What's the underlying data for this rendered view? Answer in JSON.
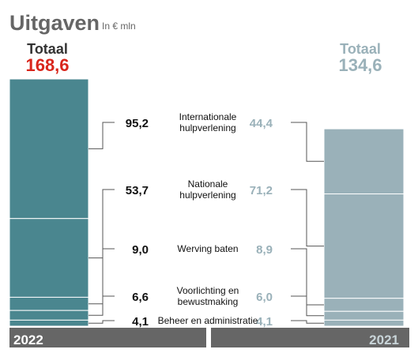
{
  "header": {
    "title": "Uitgaven",
    "unit": "In € mln"
  },
  "chart_data": {
    "type": "stacked-bar",
    "categories": [
      "2022",
      "2021"
    ],
    "segments": [
      {
        "label": "Internationale hulpverlening",
        "label_lines": [
          "Internationale",
          "hulpverlening"
        ],
        "values_text": [
          "95,2",
          "44,4"
        ],
        "values": [
          95.2,
          44.4
        ]
      },
      {
        "label": "Nationale hulpverlening",
        "label_lines": [
          "Nationale",
          "hulpverlening"
        ],
        "values_text": [
          "53,7",
          "71,2"
        ],
        "values": [
          53.7,
          71.2
        ]
      },
      {
        "label": "Werving baten",
        "label_lines": [
          "Werving baten"
        ],
        "values_text": [
          "9,0",
          "8,9"
        ],
        "values": [
          9.0,
          8.9
        ]
      },
      {
        "label": "Voorlichting en bewustmaking",
        "label_lines": [
          "Voorlichting en",
          "bewustmaking"
        ],
        "values_text": [
          "6,6",
          "6,0"
        ],
        "values": [
          6.6,
          6.0
        ]
      },
      {
        "label": "Beheer en administratie",
        "label_lines": [
          "Beheer en administratie"
        ],
        "values_text": [
          "4,1",
          "4,1"
        ],
        "values": [
          4.1,
          4.1
        ]
      }
    ],
    "totals": [
      {
        "label": "Totaal",
        "value_text": "168,6",
        "value": 168.6
      },
      {
        "label": "Totaal",
        "value_text": "134,6",
        "value": 134.6
      }
    ],
    "colors": {
      "bar_2022": "#4a868f",
      "bar_2021": "#9ab1b9",
      "total_2022": "#d9261c",
      "total_2021": "#9ab1b9",
      "value_2021": "#9ab1b9",
      "footer": "#666666",
      "title": "#666666"
    }
  }
}
